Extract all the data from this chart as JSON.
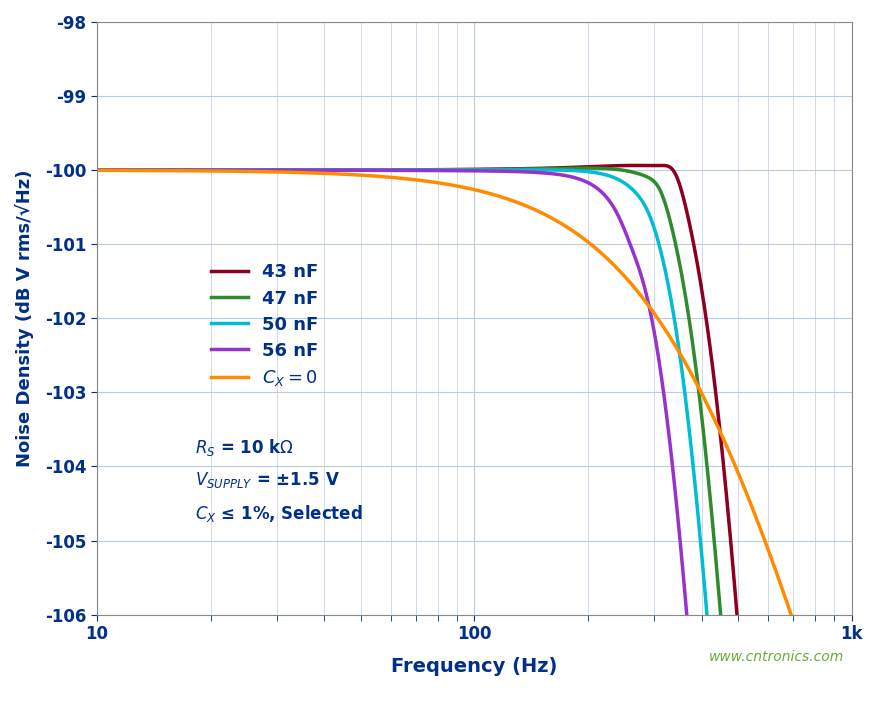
{
  "title": "",
  "xlabel": "Frequency (Hz)",
  "ylabel": "Noise Density (dB V rms/√Hz)",
  "xlim": [
    10,
    1000
  ],
  "ylim": [
    -106,
    -98
  ],
  "yticks": [
    -106,
    -105,
    -104,
    -103,
    -102,
    -101,
    -100,
    -99,
    -98
  ],
  "background_color": "#ffffff",
  "grid_color": "#b8cce4",
  "axis_label_color": "#003087",
  "tick_label_color": "#003087",
  "series": [
    {
      "label": "43 nF",
      "color": "#8B0020",
      "C_nF": 43
    },
    {
      "label": "47 nF",
      "color": "#2e8b2e",
      "C_nF": 47
    },
    {
      "label": "50 nF",
      "color": "#00bcd4",
      "C_nF": 50
    },
    {
      "label": "56 nF",
      "color": "#9932CC",
      "C_nF": 56
    },
    {
      "label": "$C_X = 0$",
      "color": "#FF8C00",
      "C_nF": 0
    }
  ],
  "watermark": "www.cntronics.com",
  "watermark_color": "#6aaa3a"
}
